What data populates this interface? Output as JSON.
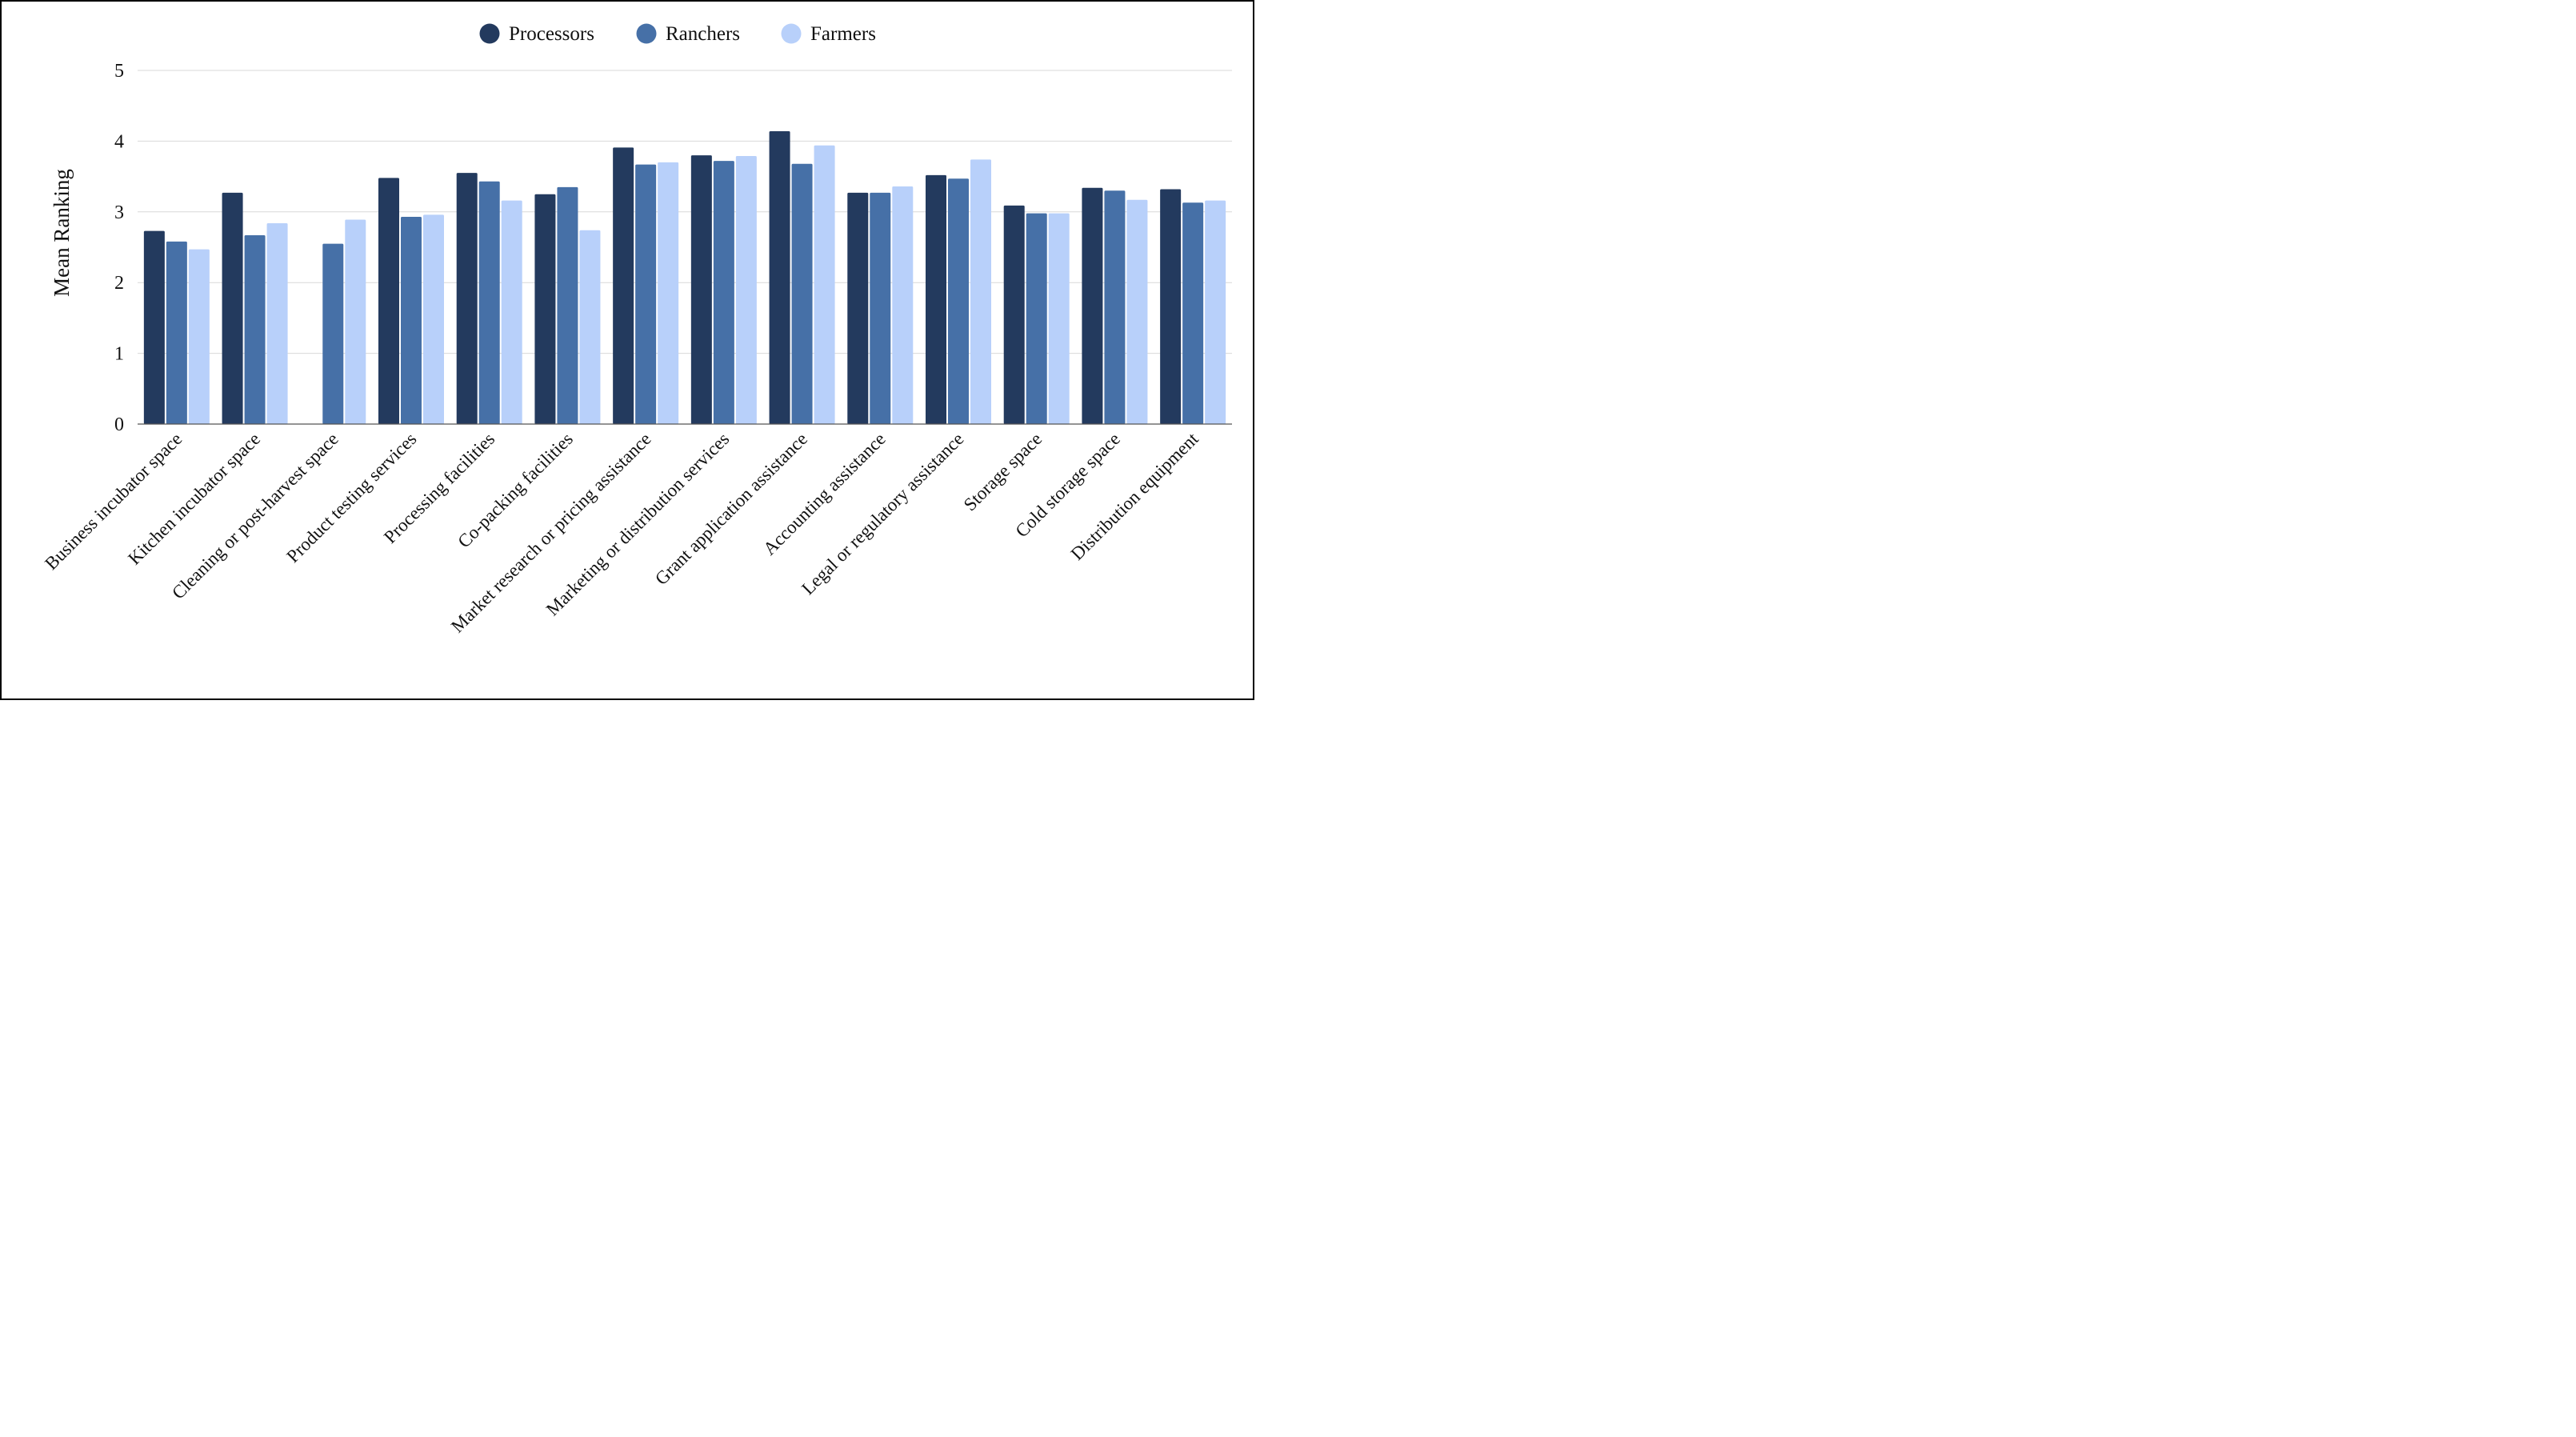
{
  "chart_data": {
    "type": "bar",
    "title": "",
    "xlabel": "",
    "ylabel": "Mean Ranking",
    "ylim": [
      0,
      5
    ],
    "yticks": [
      0,
      1,
      2,
      3,
      4,
      5
    ],
    "grid": true,
    "legend_position": "top-center",
    "categories": [
      "Business incubator space",
      "Kitchen incubator space",
      "Cleaning or post-harvest space",
      "Product testing services",
      "Processing facilities",
      "Co-packing facilities",
      "Market research or pricing assistance",
      "Marketing or distribution services",
      "Grant application assistance",
      "Accounting assistance",
      "Legal or regulatory assistance",
      "Storage space",
      "Cold storage space",
      "Distribution equipment"
    ],
    "series": [
      {
        "name": "Processors",
        "color": "#233a5e",
        "values": [
          2.73,
          3.27,
          null,
          3.48,
          3.55,
          3.25,
          3.91,
          3.8,
          4.14,
          3.27,
          3.52,
          3.09,
          3.34,
          3.32
        ]
      },
      {
        "name": "Ranchers",
        "color": "#4670a7",
        "values": [
          2.58,
          2.67,
          2.55,
          2.93,
          3.43,
          3.35,
          3.67,
          3.72,
          3.68,
          3.27,
          3.47,
          2.98,
          3.3,
          3.13
        ]
      },
      {
        "name": "Farmers",
        "color": "#b8d0fa",
        "values": [
          2.47,
          2.84,
          2.89,
          2.96,
          3.16,
          2.74,
          3.7,
          3.79,
          3.94,
          3.36,
          3.74,
          2.98,
          3.17,
          3.16
        ]
      }
    ]
  }
}
